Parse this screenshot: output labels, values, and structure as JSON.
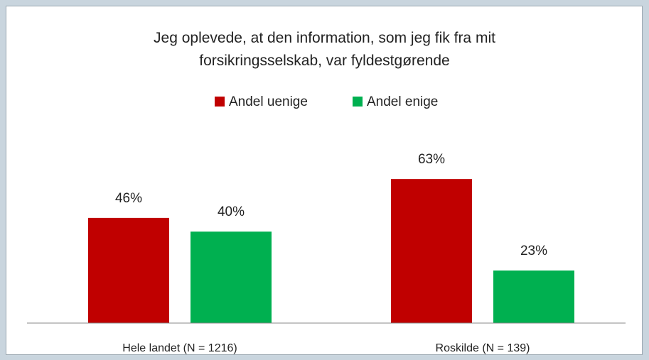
{
  "chart_data": {
    "type": "bar",
    "title": "Jeg oplevede, at den information, som jeg fik fra mit\nforsikringsselskab, var fyldestgørende",
    "categories": [
      "Hele landet (N = 1216)",
      "Roskilde (N = 139)"
    ],
    "series": [
      {
        "name": "Andel uenige",
        "color": "#c00000",
        "values": [
          46,
          63
        ],
        "value_labels": [
          "46%",
          "63%"
        ]
      },
      {
        "name": "Andel enige",
        "color": "#00b050",
        "values": [
          40,
          23
        ],
        "value_labels": [
          "40%",
          "23%"
        ]
      }
    ],
    "legend": "top"
  }
}
